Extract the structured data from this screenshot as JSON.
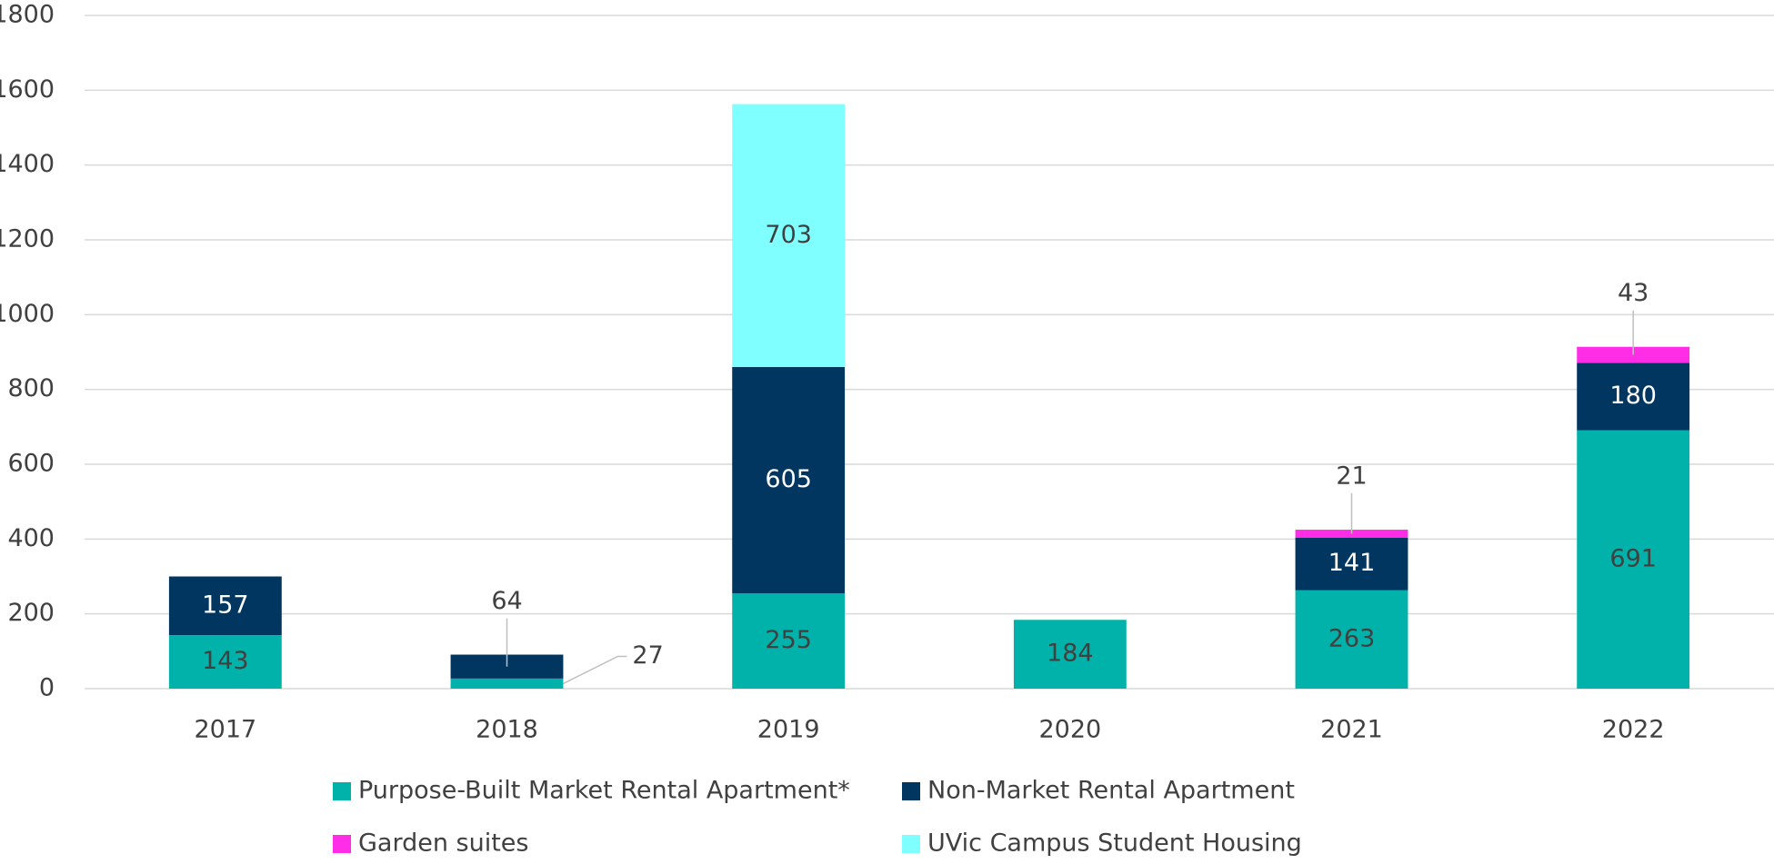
{
  "chart_data": {
    "type": "bar",
    "stacked": true,
    "categories": [
      "2017",
      "2018",
      "2019",
      "2020",
      "2021",
      "2022"
    ],
    "series": [
      {
        "name": "Purpose-Built Market Rental Apartment*",
        "color": "#00b2a9",
        "values": [
          143,
          27,
          255,
          184,
          263,
          691
        ]
      },
      {
        "name": "Non-Market Rental Apartment",
        "color": "#003660",
        "values": [
          157,
          64,
          605,
          null,
          141,
          180
        ]
      },
      {
        "name": "Garden suites",
        "color": "#ff2ee6",
        "values": [
          null,
          null,
          null,
          null,
          21,
          43
        ]
      },
      {
        "name": "UVic Campus Student Housing",
        "color": "#7fffff",
        "values": [
          null,
          null,
          703,
          null,
          null,
          null
        ]
      }
    ],
    "ylim": [
      0,
      1800
    ],
    "yticks": [
      0,
      200,
      400,
      600,
      800,
      1000,
      1200,
      1400,
      1600,
      1800
    ],
    "grid": true,
    "legend": "bottom"
  }
}
